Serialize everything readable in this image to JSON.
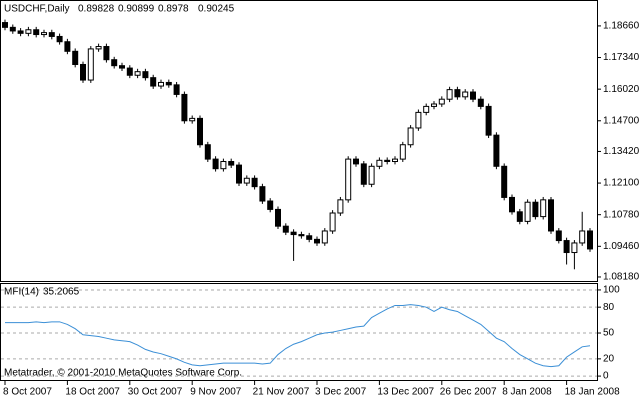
{
  "header": {
    "symbol": "USDCHF,Daily",
    "ohlc": [
      0.89828,
      0.90899,
      0.8978,
      0.90245
    ]
  },
  "footer": "Metatrader, © 2001-2010 MetaQuotes Software Corp.",
  "chart_data": [
    {
      "type": "candlestick",
      "up_color": "#ffffff",
      "down_color": "#000000",
      "color": "#000000",
      "open": [
        1.188,
        1.186,
        1.1845,
        1.1835,
        1.185,
        1.183,
        1.1838,
        1.1822,
        1.18,
        1.176,
        1.1705,
        1.164,
        1.177,
        1.178,
        1.1725,
        1.17,
        1.169,
        1.166,
        1.1675,
        1.165,
        1.1615,
        1.163,
        1.162,
        1.158,
        1.147,
        1.148,
        1.137,
        1.131,
        1.127,
        1.13,
        1.1285,
        1.121,
        1.123,
        1.1195,
        1.1135,
        1.11,
        1.103,
        1.1005,
        1.0995,
        1.099,
        1.0975,
        1.096,
        1.101,
        1.1085,
        1.114,
        1.131,
        1.129,
        1.1205,
        1.128,
        1.1305,
        1.13,
        1.131,
        1.137,
        1.144,
        1.1505,
        1.153,
        1.154,
        1.156,
        1.16,
        1.157,
        1.159,
        1.156,
        1.153,
        1.141,
        1.128,
        1.115,
        1.109,
        1.105,
        1.113,
        1.107,
        1.114,
        1.101,
        1.097,
        1.092,
        1.096,
        1.101
      ],
      "high": [
        1.1892,
        1.1872,
        1.1857,
        1.1862,
        1.1862,
        1.185,
        1.185,
        1.1834,
        1.1812,
        1.1772,
        1.1717,
        1.1782,
        1.1792,
        1.1792,
        1.1737,
        1.1712,
        1.1702,
        1.1687,
        1.1687,
        1.1662,
        1.1642,
        1.1642,
        1.1632,
        1.1592,
        1.1492,
        1.1492,
        1.1382,
        1.1322,
        1.1312,
        1.1312,
        1.1297,
        1.1242,
        1.1242,
        1.1207,
        1.1147,
        1.1112,
        1.1042,
        1.1017,
        1.1007,
        1.1002,
        1.0987,
        1.1022,
        1.1097,
        1.1152,
        1.1322,
        1.1322,
        1.1302,
        1.1292,
        1.1317,
        1.1317,
        1.1322,
        1.1382,
        1.1452,
        1.1517,
        1.1542,
        1.1552,
        1.1572,
        1.1612,
        1.1612,
        1.1602,
        1.1602,
        1.1572,
        1.1542,
        1.1422,
        1.1292,
        1.1162,
        1.1102,
        1.1142,
        1.1142,
        1.1152,
        1.1152,
        1.1022,
        1.0982,
        1.0972,
        1.109,
        1.1022
      ],
      "low": [
        1.1848,
        1.1833,
        1.1823,
        1.1823,
        1.1818,
        1.1818,
        1.181,
        1.1788,
        1.1748,
        1.1693,
        1.1628,
        1.1628,
        1.1758,
        1.1713,
        1.1688,
        1.1678,
        1.1648,
        1.1648,
        1.1638,
        1.1603,
        1.1603,
        1.1608,
        1.1568,
        1.1458,
        1.1458,
        1.1358,
        1.1298,
        1.1258,
        1.1258,
        1.1273,
        1.1198,
        1.1198,
        1.1183,
        1.1123,
        1.1088,
        1.1018,
        1.0993,
        1.0885,
        1.0978,
        1.0963,
        1.0948,
        1.0948,
        1.0998,
        1.1073,
        1.1128,
        1.1278,
        1.1193,
        1.1193,
        1.1268,
        1.1288,
        1.1288,
        1.1298,
        1.1358,
        1.1428,
        1.1493,
        1.1518,
        1.1528,
        1.1548,
        1.1558,
        1.1558,
        1.1548,
        1.1518,
        1.1398,
        1.1268,
        1.1138,
        1.1078,
        1.1038,
        1.1038,
        1.1058,
        1.1058,
        1.0998,
        1.0958,
        1.087,
        1.085,
        1.0948,
        1.0923
      ],
      "close": [
        1.186,
        1.1845,
        1.1835,
        1.185,
        1.183,
        1.1838,
        1.1822,
        1.18,
        1.176,
        1.1705,
        1.164,
        1.177,
        1.178,
        1.1725,
        1.17,
        1.169,
        1.166,
        1.1675,
        1.165,
        1.1615,
        1.163,
        1.162,
        1.158,
        1.147,
        1.148,
        1.137,
        1.131,
        1.127,
        1.13,
        1.1285,
        1.121,
        1.123,
        1.1195,
        1.1135,
        1.11,
        1.103,
        1.1005,
        1.0995,
        1.099,
        1.0975,
        1.096,
        1.101,
        1.1085,
        1.114,
        1.131,
        1.129,
        1.1205,
        1.128,
        1.1305,
        1.13,
        1.131,
        1.137,
        1.144,
        1.1505,
        1.153,
        1.154,
        1.156,
        1.16,
        1.157,
        1.159,
        1.156,
        1.153,
        1.141,
        1.128,
        1.115,
        1.109,
        1.105,
        1.113,
        1.107,
        1.114,
        1.101,
        1.097,
        1.092,
        1.096,
        1.101,
        1.0935
      ],
      "ylim": [
        1.0797,
        1.197
      ],
      "yticks": [
        {
          "value": 1.1866,
          "label": "1.18660"
        },
        {
          "value": 1.1734,
          "label": "1.17340"
        },
        {
          "value": 1.1602,
          "label": "1.16020"
        },
        {
          "value": 1.147,
          "label": "1.14700"
        },
        {
          "value": 1.1342,
          "label": "1.13420"
        },
        {
          "value": 1.121,
          "label": "1.12100"
        },
        {
          "value": 1.1078,
          "label": "1.10780"
        },
        {
          "value": 1.0946,
          "label": "1.09460"
        },
        {
          "value": 1.0818,
          "label": "1.08180"
        }
      ]
    },
    {
      "type": "line",
      "title": "MFI(14)",
      "color": "#3b8fd6",
      "grid": true,
      "categories": [
        "8 Oct 2007",
        null,
        null,
        null,
        null,
        null,
        null,
        null,
        "18 Oct 2007",
        null,
        null,
        null,
        null,
        null,
        null,
        null,
        "30 Oct 2007",
        null,
        null,
        null,
        null,
        null,
        null,
        null,
        "9 Nov 2007",
        null,
        null,
        null,
        null,
        null,
        null,
        null,
        "21 Nov 2007",
        null,
        null,
        null,
        null,
        null,
        null,
        null,
        "3 Dec 2007",
        null,
        null,
        null,
        null,
        null,
        null,
        null,
        "13 Dec 2007",
        null,
        null,
        null,
        null,
        null,
        null,
        null,
        "26 Dec 2007",
        null,
        null,
        null,
        null,
        null,
        null,
        null,
        "8 Jan 2008",
        null,
        null,
        null,
        null,
        null,
        null,
        null,
        "18 Jan 2008",
        null,
        null,
        null
      ],
      "values": [
        62,
        62,
        62,
        62,
        63,
        62,
        63,
        63,
        60,
        55,
        48,
        47,
        46,
        44,
        42,
        41,
        40,
        36,
        31,
        28,
        26,
        23,
        20,
        16,
        13,
        12,
        13,
        14,
        15,
        15,
        15,
        15,
        15,
        14,
        15,
        25,
        32,
        37,
        40,
        44,
        48,
        50,
        51,
        53,
        55,
        57,
        58,
        68,
        73,
        78,
        82,
        82,
        83,
        82,
        80,
        75,
        80,
        77,
        75,
        70,
        65,
        60,
        52,
        44,
        40,
        32,
        25,
        20,
        15,
        12,
        11,
        12,
        22,
        28,
        34,
        35.2065
      ],
      "ylim": [
        -5.7,
        106.9
      ],
      "yticks": [
        0,
        20,
        50,
        80,
        100
      ]
    }
  ]
}
